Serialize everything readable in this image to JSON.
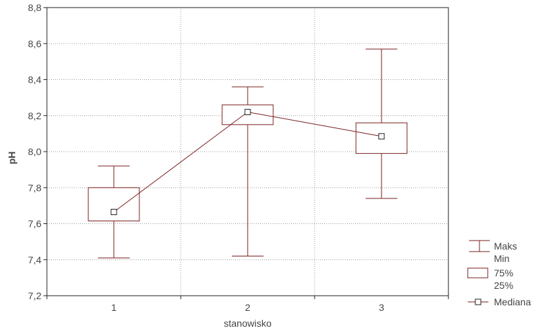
{
  "chart_data": {
    "type": "boxplot",
    "xlabel": "stanowisko",
    "ylabel": "pH",
    "ylim": [
      7.2,
      8.8
    ],
    "yticks": [
      "7,2",
      "7,4",
      "7,6",
      "7,8",
      "8,0",
      "8,2",
      "8,4",
      "8,6",
      "8,8"
    ],
    "ytick_values": [
      7.2,
      7.4,
      7.6,
      7.8,
      8.0,
      8.2,
      8.4,
      8.6,
      8.8
    ],
    "categories": [
      "1",
      "2",
      "3"
    ],
    "series": [
      {
        "category": "1",
        "max": 7.92,
        "q75": 7.8,
        "median": 7.665,
        "q25": 7.615,
        "min": 7.41
      },
      {
        "category": "2",
        "max": 8.36,
        "q75": 8.26,
        "median": 8.22,
        "q25": 8.15,
        "min": 7.42
      },
      {
        "category": "3",
        "max": 8.57,
        "q75": 8.16,
        "median": 8.085,
        "q25": 7.99,
        "min": 7.74
      }
    ],
    "median_line": true,
    "grid": true,
    "legend_position": "right",
    "legend": {
      "whisker_max": "Maks",
      "whisker_min": "Min",
      "box_top": "75%",
      "box_bottom": "25%",
      "median": "Mediana"
    },
    "color": "#7a1f1f"
  }
}
